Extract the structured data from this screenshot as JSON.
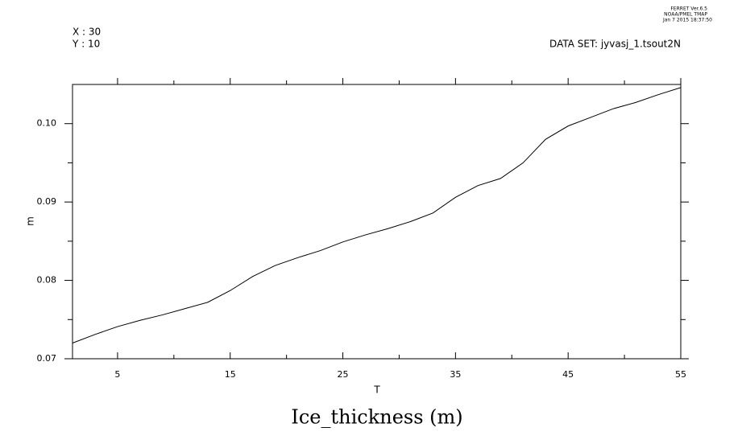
{
  "chart_data": {
    "type": "line",
    "title": "Ice_thickness (m)",
    "xlabel": "T",
    "ylabel": "m",
    "annotations": [
      "X : 30",
      "Y : 10",
      "DATA SET: jyvasj_1.tsout2N",
      "FERRET  Ver.6.5",
      "NOAA/PMEL TMAP",
      "Jan  7 2015 18:37:50"
    ],
    "x": [
      1,
      3,
      5,
      7,
      9,
      11,
      13,
      15,
      17,
      19,
      21,
      23,
      25,
      27,
      29,
      31,
      33,
      35,
      37,
      39,
      41,
      43,
      45,
      47,
      49,
      51,
      53,
      55
    ],
    "series": [
      {
        "name": "Ice_thickness",
        "color": "#000000",
        "values": [
          0.072,
          0.0731,
          0.0741,
          0.0749,
          0.0756,
          0.0764,
          0.0772,
          0.0787,
          0.0805,
          0.0819,
          0.0829,
          0.0838,
          0.0849,
          0.0858,
          0.0866,
          0.0875,
          0.0886,
          0.0906,
          0.0921,
          0.093,
          0.095,
          0.098,
          0.0997,
          0.1008,
          0.1019,
          0.1027,
          0.1037,
          0.1046
        ]
      }
    ],
    "xlim": [
      1,
      55
    ],
    "xticks": [
      5,
      15,
      25,
      35,
      45,
      55
    ],
    "xminorticks": [
      10,
      20,
      30,
      40,
      50
    ],
    "ylim": [
      0.07,
      0.105
    ],
    "yticks": [
      0.07,
      0.08,
      0.09,
      {
        "value": 0.1,
        "label": "0.10"
      }
    ],
    "yminorticks": [
      0.075,
      0.085,
      0.095
    ]
  }
}
